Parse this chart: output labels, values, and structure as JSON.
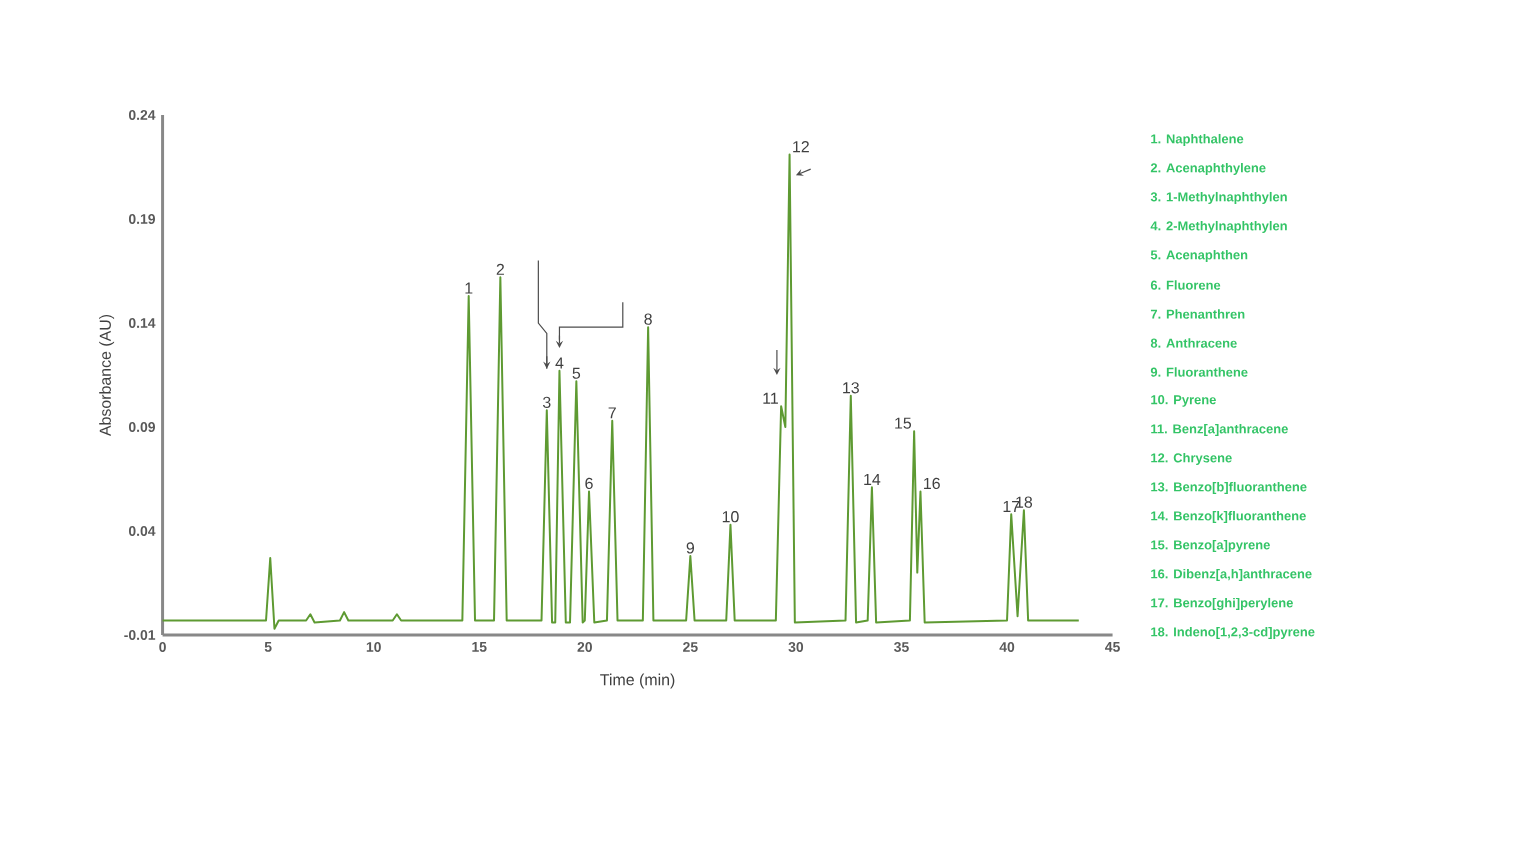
{
  "chart_data": {
    "type": "line",
    "xlabel": "Time (min)",
    "ylabel": "Absorbance (AU)",
    "xlim": [
      0,
      45
    ],
    "xticks": [
      0,
      5,
      10,
      15,
      20,
      25,
      30,
      35,
      40,
      45
    ],
    "ylim": [
      -0.01,
      0.24
    ],
    "yticks": [
      -0.01,
      0.04,
      0.09,
      0.14,
      0.19,
      0.24
    ],
    "grid": false,
    "marker": "none",
    "line_style": "solid",
    "series": [
      {
        "color": "#5e9a32",
        "x": [
          0,
          4.9,
          5.1,
          5.3,
          5.5,
          6.8,
          7.0,
          7.2,
          8.4,
          8.6,
          8.8,
          10.9,
          11.1,
          11.3,
          14.2,
          14.5,
          14.8,
          15.7,
          16.0,
          16.3,
          17.95,
          18.2,
          18.45,
          18.6,
          18.8,
          19.1,
          19.3,
          19.6,
          19.9,
          20.0,
          20.2,
          20.45,
          21.05,
          21.3,
          21.55,
          22.75,
          23.0,
          23.25,
          24.8,
          25.0,
          25.2,
          26.7,
          26.9,
          27.1,
          29.05,
          29.3,
          29.5,
          29.7,
          29.95,
          32.35,
          32.6,
          32.85,
          33.4,
          33.6,
          33.8,
          35.4,
          35.6,
          35.75,
          35.9,
          36.1,
          40.0,
          40.2,
          40.5,
          40.8,
          41.0,
          43.4
        ],
        "values": [
          -0.003,
          -0.003,
          0.027,
          -0.007,
          -0.003,
          -0.003,
          0.0,
          -0.004,
          -0.003,
          0.001,
          -0.003,
          -0.003,
          0.0,
          -0.003,
          -0.003,
          0.153,
          -0.003,
          -0.003,
          0.162,
          -0.003,
          -0.003,
          0.098,
          -0.004,
          -0.004,
          0.117,
          -0.004,
          -0.004,
          0.112,
          -0.004,
          -0.003,
          0.059,
          -0.004,
          -0.003,
          0.093,
          -0.003,
          -0.003,
          0.138,
          -0.003,
          -0.003,
          0.028,
          -0.003,
          -0.003,
          0.043,
          -0.003,
          -0.003,
          0.1,
          0.09,
          0.221,
          -0.004,
          -0.003,
          0.105,
          -0.004,
          -0.003,
          0.061,
          -0.004,
          -0.003,
          0.088,
          0.02,
          0.059,
          -0.004,
          -0.003,
          0.048,
          -0.001,
          0.05,
          -0.003,
          -0.003
        ]
      }
    ],
    "annotations": [
      {
        "text": "1",
        "x": 14.5,
        "y": 0.153
      },
      {
        "text": "2",
        "x": 16.0,
        "y": 0.162
      },
      {
        "text": "3",
        "x": 18.2,
        "y": 0.098
      },
      {
        "text": "4",
        "x": 18.8,
        "y": 0.117
      },
      {
        "text": "5",
        "x": 19.6,
        "y": 0.112
      },
      {
        "text": "6",
        "x": 20.2,
        "y": 0.059
      },
      {
        "text": "7",
        "x": 21.3,
        "y": 0.093
      },
      {
        "text": "8",
        "x": 23.0,
        "y": 0.138
      },
      {
        "text": "9",
        "x": 25.0,
        "y": 0.028
      },
      {
        "text": "10",
        "x": 26.9,
        "y": 0.043
      },
      {
        "text": "11",
        "x": 29.3,
        "y": 0.1
      },
      {
        "text": "12",
        "x": 29.7,
        "y": 0.221
      },
      {
        "text": "13",
        "x": 32.6,
        "y": 0.105
      },
      {
        "text": "14",
        "x": 33.6,
        "y": 0.061
      },
      {
        "text": "15",
        "x": 35.6,
        "y": 0.088
      },
      {
        "text": "16",
        "x": 35.9,
        "y": 0.059
      },
      {
        "text": "17",
        "x": 40.2,
        "y": 0.048
      },
      {
        "text": "18",
        "x": 40.8,
        "y": 0.05
      },
      "1. Naphthalene",
      "2. Acenaphthylene",
      "3. 1-Methylnaphthylen",
      "4. 2-Methylnaphthylen",
      "5. Acenaphthen",
      "6. Fluorene",
      "7. Phenanthren",
      "8. Anthracene",
      "9. Fluoranthene",
      "10. Pyrene",
      "11. Benz[a]anthracene",
      "12. Chrysene",
      "13. Benzo[b]fluoranthene",
      "14. Benzo[k]fluoranthene",
      "15. Benzo[a]pyrene",
      "16. Dibenz[a,h]anthracene",
      "17. Benzo[ghi]perylene",
      "18. Indeno[1,2,3-cd]pyrene"
    ]
  }
}
